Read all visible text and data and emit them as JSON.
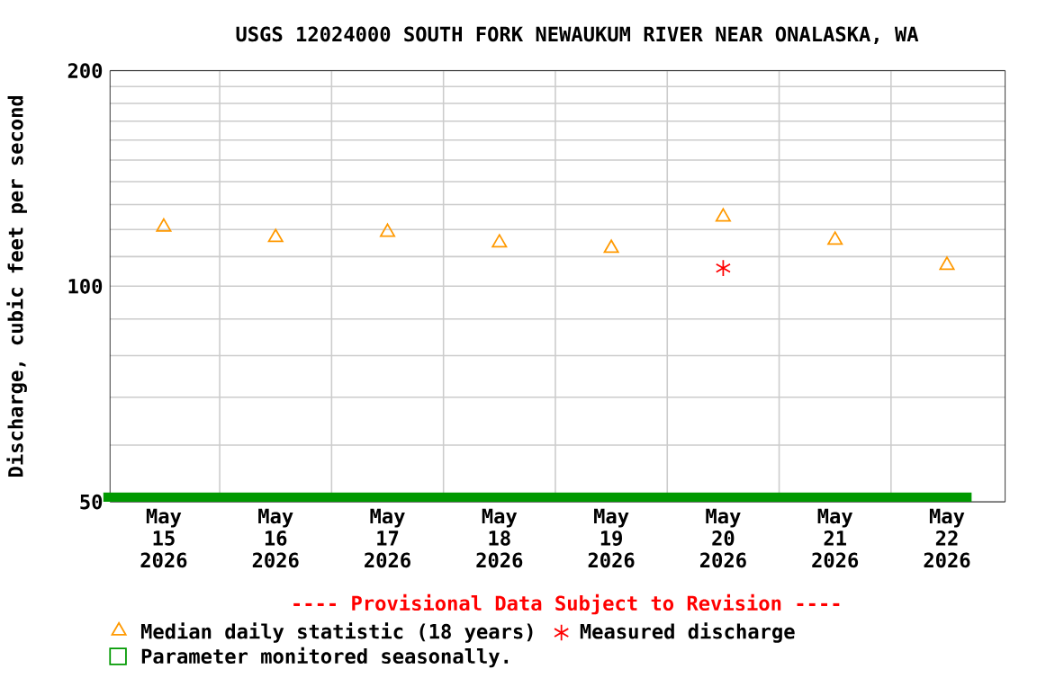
{
  "chart_data": {
    "type": "scatter",
    "title": "USGS 12024000 SOUTH FORK NEWAUKUM RIVER NEAR ONALASKA, WA",
    "ylabel": "Discharge, cubic feet per second",
    "categories": [
      "May 15 2026",
      "May 16 2026",
      "May 17 2026",
      "May 18 2026",
      "May 19 2026",
      "May 20 2026",
      "May 21 2026",
      "May 22 2026"
    ],
    "series": [
      {
        "name": "Median daily statistic (18 years)",
        "color": "#ff9900",
        "marker": "triangle",
        "values": [
          121,
          117,
          119,
          115,
          113,
          125,
          116,
          107
        ]
      },
      {
        "name": "Measured discharge",
        "color": "#ff0000",
        "marker": "cross",
        "values": [
          null,
          null,
          null,
          null,
          null,
          106,
          null,
          null
        ]
      }
    ],
    "log": "y",
    "ylim": [
      50,
      200
    ],
    "yticks": [
      50,
      {
        "value": 60,
        "label": null
      },
      {
        "value": 70,
        "label": null
      },
      {
        "value": 80,
        "label": null
      },
      {
        "value": 90,
        "label": null
      },
      100,
      {
        "value": 110,
        "label": null
      },
      {
        "value": 120,
        "label": null
      },
      {
        "value": 130,
        "label": null
      },
      {
        "value": 140,
        "label": null
      },
      {
        "value": 150,
        "label": null
      },
      {
        "value": 160,
        "label": null
      },
      {
        "value": 170,
        "label": null
      },
      {
        "value": 180,
        "label": null
      },
      {
        "value": 190,
        "label": null
      },
      200
    ],
    "grid": true,
    "bands": [
      {
        "axis": "y",
        "from": 50,
        "to": 51.5,
        "label": "Parameter monitored seasonally.",
        "color": "#009900"
      }
    ],
    "annotations": [
      "---- Provisional Data Subject to Revision ----"
    ],
    "legend": "bottom"
  }
}
